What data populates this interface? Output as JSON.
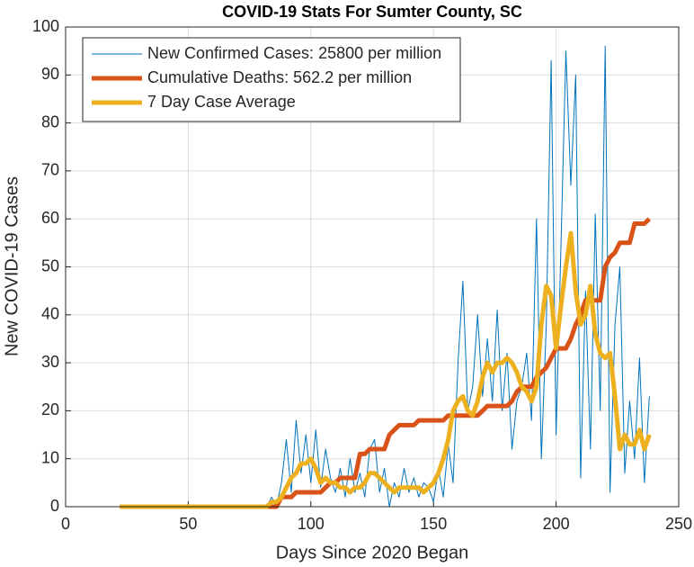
{
  "chart_data": {
    "type": "line",
    "title": "COVID-19 Stats For Sumter County, SC",
    "x_label": "Days Since 2020 Began",
    "y_label": "New COVID-19 Cases",
    "xlim": [
      0,
      250
    ],
    "xticks": [
      0,
      50,
      100,
      150,
      200,
      250
    ],
    "ylim": [
      0,
      100
    ],
    "yticks": [
      0,
      10,
      20,
      30,
      40,
      50,
      60,
      70,
      80,
      90,
      100
    ],
    "grid": true,
    "legend": "upper left",
    "x": [
      22,
      24,
      26,
      28,
      30,
      32,
      34,
      36,
      38,
      40,
      42,
      44,
      46,
      48,
      50,
      52,
      54,
      56,
      58,
      60,
      62,
      64,
      66,
      68,
      70,
      72,
      74,
      76,
      78,
      80,
      82,
      84,
      86,
      88,
      90,
      92,
      94,
      96,
      98,
      100,
      102,
      104,
      106,
      108,
      110,
      112,
      114,
      116,
      118,
      120,
      122,
      124,
      126,
      128,
      130,
      132,
      134,
      136,
      138,
      140,
      142,
      144,
      146,
      148,
      150,
      152,
      154,
      156,
      158,
      160,
      162,
      164,
      166,
      168,
      170,
      172,
      174,
      176,
      178,
      180,
      182,
      184,
      186,
      188,
      190,
      192,
      194,
      196,
      198,
      200,
      202,
      204,
      206,
      208,
      210,
      212,
      214,
      216,
      218,
      220,
      222,
      224,
      226,
      228,
      230,
      232,
      234,
      236,
      238
    ],
    "series": [
      {
        "name": "New Confirmed Cases: 25800 per million",
        "color": "#0072bd",
        "line_width": 1,
        "values": [
          0,
          0,
          0,
          0,
          0,
          0,
          0,
          0,
          0,
          0,
          0,
          0,
          0,
          0,
          0,
          0,
          0,
          0,
          0,
          0,
          0,
          0,
          0,
          0,
          0,
          0,
          0,
          0,
          0,
          0,
          0,
          2,
          0,
          5,
          14,
          3,
          18,
          7,
          15,
          5,
          16,
          4,
          12,
          6,
          3,
          8,
          2,
          10,
          3,
          7,
          2,
          12,
          14,
          3,
          8,
          0,
          5,
          2,
          8,
          3,
          6,
          2,
          5,
          4,
          1,
          8,
          2,
          13,
          5,
          30,
          47,
          20,
          25,
          40,
          23,
          35,
          22,
          41,
          20,
          32,
          12,
          22,
          25,
          32,
          18,
          60,
          10,
          38,
          93,
          15,
          55,
          95,
          67,
          90,
          6,
          45,
          12,
          61,
          20,
          96,
          3,
          38,
          50,
          7,
          22,
          10,
          31,
          5,
          23
        ]
      },
      {
        "name": "Cumulative Deaths: 562.2 per million",
        "color": "#d95319",
        "line_width": 5,
        "values": [
          0,
          0,
          0,
          0,
          0,
          0,
          0,
          0,
          0,
          0,
          0,
          0,
          0,
          0,
          0,
          0,
          0,
          0,
          0,
          0,
          0,
          0,
          0,
          0,
          0,
          0,
          0,
          0,
          0,
          0,
          0,
          0,
          0,
          2,
          2,
          2,
          3,
          3,
          3,
          3,
          3,
          3,
          4,
          5,
          5,
          6,
          6,
          6,
          6,
          11,
          11,
          12,
          12,
          12,
          12,
          15,
          16,
          17,
          17,
          17,
          17,
          18,
          18,
          18,
          18,
          18,
          18,
          19,
          19,
          19,
          19,
          19,
          19,
          19,
          20,
          21,
          21,
          21,
          21,
          21,
          22,
          24,
          25,
          25,
          25,
          27,
          28,
          29,
          31,
          33,
          33,
          33,
          35,
          38,
          40,
          43,
          43,
          43,
          43,
          50,
          52,
          53,
          55,
          55,
          55,
          59,
          59,
          59,
          60
        ]
      },
      {
        "name": "7 Day Case Average",
        "color": "#edb120",
        "line_width": 5,
        "values": [
          0,
          0,
          0,
          0,
          0,
          0,
          0,
          0,
          0,
          0,
          0,
          0,
          0,
          0,
          0,
          0,
          0,
          0,
          0,
          0,
          0,
          0,
          0,
          0,
          0,
          0,
          0,
          0,
          0,
          0,
          0,
          1,
          1,
          2,
          4,
          6,
          7,
          9,
          9,
          10,
          8,
          5,
          6,
          5,
          5,
          4,
          4,
          3,
          4,
          4,
          5,
          7,
          7,
          6,
          5,
          4,
          3,
          4,
          4,
          4,
          4,
          4,
          3,
          4,
          5,
          7,
          10,
          14,
          20,
          22,
          23,
          20,
          19,
          22,
          27,
          30,
          28,
          30,
          30,
          31,
          30,
          28,
          25,
          24,
          22,
          25,
          38,
          46,
          44,
          33,
          42,
          50,
          57,
          45,
          38,
          40,
          46,
          36,
          32,
          31,
          32,
          23,
          12,
          15,
          13,
          13,
          16,
          12,
          15
        ]
      }
    ]
  }
}
